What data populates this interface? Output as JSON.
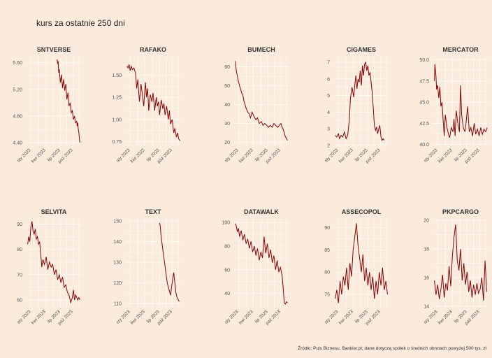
{
  "title": "kurs za ostatnie 250 dni",
  "caption": "Źródło: Puls Biznesu, Bankier.pl; dane dotyczą spółek o średnich obrotach powyżej 500 tys. zł",
  "line_color": "#8b0000",
  "background_color": "#faebdc",
  "chart_data": [
    {
      "type": "line",
      "name": "SNTVERSE",
      "x_ticks": [
        "sty 2023",
        "kwi 2023",
        "lip 2023",
        "paź 2023"
      ],
      "y_ticks": [
        4.4,
        4.8,
        5.2,
        5.6
      ],
      "ylim": [
        4.35,
        5.68
      ],
      "x": [
        0.56,
        0.57,
        0.58,
        0.59,
        0.6,
        0.62,
        0.64,
        0.66,
        0.68,
        0.7,
        0.72,
        0.74,
        0.76,
        0.78,
        0.8,
        0.82,
        0.84,
        0.86,
        0.88,
        0.9,
        0.92,
        0.93,
        0.94,
        0.95,
        0.96,
        0.97,
        0.98
      ],
      "y": [
        5.65,
        5.58,
        5.62,
        5.45,
        5.5,
        5.3,
        5.42,
        5.22,
        5.35,
        5.18,
        5.28,
        5.05,
        5.15,
        4.95,
        5.0,
        4.85,
        4.88,
        4.75,
        4.8,
        4.7,
        4.72,
        4.65,
        4.7,
        4.6,
        4.55,
        4.45,
        4.4
      ]
    },
    {
      "type": "line",
      "name": "RAFAKO",
      "x_ticks": [
        "sty 2023",
        "kwi 2023",
        "lip 2023",
        "paź 2023"
      ],
      "y_ticks": [
        0.75,
        1.0,
        1.25,
        1.5
      ],
      "ylim": [
        0.7,
        1.7
      ],
      "x": [
        0.02,
        0.04,
        0.06,
        0.08,
        0.1,
        0.12,
        0.15,
        0.18,
        0.2,
        0.22,
        0.25,
        0.28,
        0.3,
        0.33,
        0.36,
        0.38,
        0.4,
        0.42,
        0.45,
        0.48,
        0.5,
        0.53,
        0.56,
        0.58,
        0.6,
        0.62,
        0.65,
        0.68,
        0.7,
        0.72,
        0.75,
        0.78,
        0.8,
        0.82,
        0.85,
        0.88,
        0.9,
        0.93,
        0.95,
        0.97,
        1.0
      ],
      "y": [
        1.6,
        1.58,
        1.62,
        1.55,
        1.6,
        1.56,
        1.58,
        1.52,
        1.35,
        1.45,
        1.2,
        1.4,
        1.3,
        1.15,
        1.42,
        1.25,
        1.35,
        1.1,
        1.28,
        1.2,
        1.3,
        1.1,
        1.25,
        1.15,
        1.2,
        1.05,
        1.22,
        1.12,
        1.18,
        1.05,
        1.15,
        1.0,
        1.1,
        0.95,
        1.0,
        0.85,
        0.9,
        0.8,
        0.85,
        0.78,
        0.76
      ]
    },
    {
      "type": "line",
      "name": "BUMECH",
      "x_ticks": [
        "sty 2023",
        "kwi 2023",
        "lip 2023",
        "paź 2023"
      ],
      "y_ticks": [
        20,
        30,
        40,
        50,
        60
      ],
      "ylim": [
        18,
        65
      ],
      "x": [
        0.02,
        0.04,
        0.06,
        0.08,
        0.1,
        0.12,
        0.14,
        0.16,
        0.18,
        0.2,
        0.22,
        0.25,
        0.28,
        0.3,
        0.33,
        0.36,
        0.4,
        0.43,
        0.46,
        0.5,
        0.53,
        0.56,
        0.6,
        0.63,
        0.66,
        0.7,
        0.73,
        0.76,
        0.8,
        0.83,
        0.86,
        0.88,
        0.9,
        0.92,
        0.94,
        0.96,
        0.98
      ],
      "y": [
        63,
        58,
        55,
        52,
        50,
        48,
        46,
        45,
        42,
        40,
        38,
        36,
        35,
        33,
        36,
        34,
        32,
        33,
        30,
        31,
        29,
        30,
        29,
        28,
        29,
        28,
        30,
        29,
        28,
        29,
        30,
        28,
        27,
        25,
        23,
        22,
        21
      ]
    },
    {
      "type": "line",
      "name": "CIGAMES",
      "x_ticks": [
        "sty 2023",
        "kwi 2023",
        "lip 2023",
        "paź 2023"
      ],
      "y_ticks": [
        2,
        3,
        4,
        5,
        6,
        7
      ],
      "ylim": [
        1.95,
        7.3
      ],
      "x": [
        0.02,
        0.05,
        0.08,
        0.1,
        0.13,
        0.16,
        0.19,
        0.22,
        0.25,
        0.28,
        0.3,
        0.33,
        0.36,
        0.38,
        0.4,
        0.42,
        0.44,
        0.46,
        0.48,
        0.5,
        0.52,
        0.54,
        0.56,
        0.58,
        0.6,
        0.62,
        0.64,
        0.66,
        0.68,
        0.7,
        0.72,
        0.74,
        0.76,
        0.78,
        0.8,
        0.82,
        0.84,
        0.86,
        0.88,
        0.9,
        0.92
      ],
      "y": [
        2.6,
        2.5,
        2.7,
        2.4,
        2.6,
        2.5,
        2.8,
        2.4,
        2.6,
        3.5,
        4.8,
        5.5,
        4.9,
        5.6,
        6.2,
        5.4,
        6.0,
        5.8,
        6.5,
        5.6,
        6.8,
        6.2,
        6.9,
        7.0,
        6.5,
        6.8,
        6.2,
        6.4,
        5.8,
        5.2,
        4.2,
        3.2,
        2.9,
        3.1,
        2.7,
        3.0,
        3.2,
        2.5,
        2.3,
        2.4,
        2.3
      ]
    },
    {
      "type": "line",
      "name": "MERCATOR",
      "x_ticks": [
        "sty 2023",
        "kwi 2023",
        "lip 2023",
        "paź 2023"
      ],
      "y_ticks": [
        40.0,
        42.5,
        45.0,
        47.5,
        50.0
      ],
      "ylim": [
        39.8,
        50.3
      ],
      "x": [
        0.02,
        0.03,
        0.05,
        0.06,
        0.08,
        0.1,
        0.12,
        0.14,
        0.16,
        0.18,
        0.2,
        0.22,
        0.25,
        0.28,
        0.3,
        0.33,
        0.36,
        0.38,
        0.4,
        0.42,
        0.45,
        0.48,
        0.5,
        0.52,
        0.55,
        0.58,
        0.6,
        0.63,
        0.66,
        0.69,
        0.72,
        0.75,
        0.78,
        0.81,
        0.84,
        0.87,
        0.9,
        0.93,
        0.96,
        0.99
      ],
      "y": [
        47.5,
        49.5,
        48.0,
        46.5,
        47.0,
        45.5,
        46.8,
        44.5,
        45.0,
        43.0,
        41.0,
        43.5,
        42.0,
        41.2,
        40.8,
        42.0,
        41.5,
        43.0,
        41.0,
        44.0,
        42.5,
        41.5,
        47.0,
        43.5,
        42.0,
        41.5,
        42.5,
        44.5,
        41.5,
        42.0,
        41.0,
        42.5,
        41.2,
        41.8,
        41.0,
        42.0,
        41.2,
        41.8,
        41.5,
        42.0
      ]
    },
    {
      "type": "line",
      "name": "SELVITA",
      "x_ticks": [
        "sty 2023",
        "kwi 2023",
        "lip 2023",
        "paź 2023"
      ],
      "y_ticks": [
        60,
        70,
        80,
        90
      ],
      "ylim": [
        57,
        92
      ],
      "x": [
        0.02,
        0.04,
        0.06,
        0.08,
        0.1,
        0.12,
        0.14,
        0.16,
        0.18,
        0.2,
        0.22,
        0.24,
        0.26,
        0.28,
        0.3,
        0.33,
        0.36,
        0.39,
        0.42,
        0.45,
        0.48,
        0.51,
        0.54,
        0.57,
        0.6,
        0.63,
        0.66,
        0.69,
        0.72,
        0.75,
        0.78,
        0.81,
        0.84,
        0.86,
        0.88,
        0.9,
        0.92,
        0.94,
        0.96,
        0.98
      ],
      "y": [
        82,
        85,
        83,
        89,
        91,
        87,
        86,
        88,
        84,
        85,
        82,
        83,
        78,
        73,
        76,
        74,
        77,
        72,
        75,
        73,
        74,
        70,
        72,
        68,
        70,
        67,
        69,
        65,
        66,
        63,
        62,
        59,
        61,
        64,
        60,
        62,
        61,
        60,
        61,
        60
      ]
    },
    {
      "type": "line",
      "name": "TEXT",
      "x_ticks": [
        "sty 2023",
        "kwi 2023",
        "lip 2023",
        "paź 2023"
      ],
      "y_ticks": [
        110,
        120,
        130,
        140,
        150
      ],
      "ylim": [
        108,
        151
      ],
      "x": [
        0.62,
        0.63,
        0.64,
        0.65,
        0.66,
        0.68,
        0.7,
        0.72,
        0.74,
        0.76,
        0.78,
        0.8,
        0.82,
        0.84,
        0.86,
        0.88,
        0.9,
        0.92,
        0.94,
        0.96,
        0.98
      ],
      "y": [
        149,
        148,
        145,
        142,
        140,
        136,
        132,
        128,
        124,
        120,
        118,
        116,
        114,
        118,
        122,
        125,
        120,
        115,
        113,
        112,
        111
      ]
    },
    {
      "type": "line",
      "name": "DATAWALK",
      "x_ticks": [
        "sty 2023",
        "kwi 2023",
        "lip 2023",
        "paź 2023"
      ],
      "y_ticks": [
        40,
        60,
        80,
        100
      ],
      "ylim": [
        28,
        103
      ],
      "x": [
        0.02,
        0.04,
        0.06,
        0.08,
        0.1,
        0.13,
        0.16,
        0.19,
        0.22,
        0.25,
        0.28,
        0.31,
        0.34,
        0.37,
        0.4,
        0.43,
        0.46,
        0.49,
        0.52,
        0.55,
        0.58,
        0.61,
        0.64,
        0.67,
        0.7,
        0.73,
        0.76,
        0.79,
        0.82,
        0.85,
        0.88,
        0.9,
        0.92,
        0.94,
        0.96,
        0.98
      ],
      "y": [
        99,
        97,
        92,
        95,
        88,
        93,
        85,
        90,
        82,
        86,
        78,
        84,
        75,
        80,
        72,
        78,
        68,
        75,
        70,
        88,
        74,
        82,
        70,
        77,
        66,
        72,
        60,
        68,
        58,
        62,
        55,
        45,
        32,
        31,
        33,
        32
      ]
    },
    {
      "type": "line",
      "name": "ASSECOPOL",
      "x_ticks": [
        "sty 2023",
        "kwi 2023",
        "lip 2023",
        "paź 2023"
      ],
      "y_ticks": [
        75,
        80,
        85,
        90
      ],
      "ylim": [
        72,
        92
      ],
      "x": [
        0.02,
        0.05,
        0.08,
        0.11,
        0.14,
        0.17,
        0.2,
        0.23,
        0.26,
        0.29,
        0.32,
        0.35,
        0.38,
        0.41,
        0.44,
        0.47,
        0.5,
        0.53,
        0.56,
        0.59,
        0.62,
        0.65,
        0.68,
        0.71,
        0.74,
        0.77,
        0.8,
        0.83,
        0.86,
        0.89,
        0.92,
        0.95,
        0.98
      ],
      "y": [
        74,
        76,
        73,
        78,
        75,
        79,
        77,
        81,
        76,
        82,
        79,
        85,
        88,
        91,
        86,
        83,
        80,
        84,
        78,
        81,
        77,
        80,
        76,
        79,
        74,
        78,
        75,
        80,
        77,
        81,
        76,
        78,
        75
      ]
    },
    {
      "type": "line",
      "name": "PKPCARGO",
      "x_ticks": [
        "sty 2023",
        "kwi 2023",
        "lip 2023",
        "paź 2023"
      ],
      "y_ticks": [
        14,
        16,
        18,
        20
      ],
      "ylim": [
        13.9,
        20.1
      ],
      "x": [
        0.02,
        0.05,
        0.08,
        0.11,
        0.14,
        0.17,
        0.2,
        0.23,
        0.26,
        0.29,
        0.32,
        0.35,
        0.38,
        0.41,
        0.44,
        0.47,
        0.5,
        0.53,
        0.56,
        0.59,
        0.62,
        0.65,
        0.68,
        0.71,
        0.74,
        0.77,
        0.8,
        0.83,
        0.86,
        0.89,
        0.92,
        0.95,
        0.98
      ],
      "y": [
        15.8,
        14.8,
        15.5,
        14.5,
        15.2,
        16.2,
        14.6,
        15.6,
        15.1,
        16.8,
        15.4,
        17.5,
        18.8,
        19.7,
        17.2,
        16.5,
        18.0,
        15.8,
        17.0,
        15.5,
        16.4,
        15.0,
        15.8,
        14.6,
        15.5,
        14.8,
        15.6,
        14.9,
        15.2,
        16.0,
        14.4,
        17.2,
        15.0
      ]
    }
  ]
}
